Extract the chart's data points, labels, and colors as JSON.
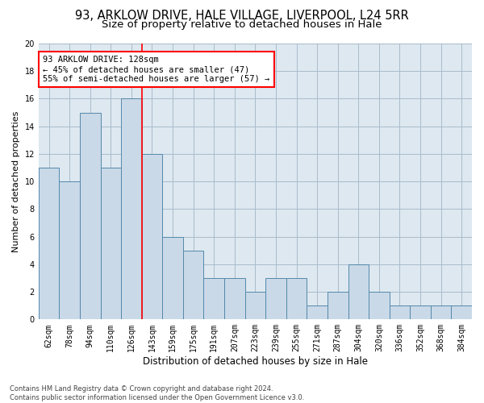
{
  "title": "93, ARKLOW DRIVE, HALE VILLAGE, LIVERPOOL, L24 5RR",
  "subtitle": "Size of property relative to detached houses in Hale",
  "xlabel": "Distribution of detached houses by size in Hale",
  "ylabel": "Number of detached properties",
  "bar_labels": [
    "62sqm",
    "78sqm",
    "94sqm",
    "110sqm",
    "126sqm",
    "143sqm",
    "159sqm",
    "175sqm",
    "191sqm",
    "207sqm",
    "223sqm",
    "239sqm",
    "255sqm",
    "271sqm",
    "287sqm",
    "304sqm",
    "320sqm",
    "336sqm",
    "352sqm",
    "368sqm",
    "384sqm"
  ],
  "bar_values": [
    11,
    10,
    15,
    11,
    16,
    12,
    6,
    5,
    3,
    3,
    2,
    3,
    3,
    1,
    2,
    4,
    2,
    1,
    1,
    1,
    1
  ],
  "bar_color": "#c9d9e8",
  "bar_edge_color": "#5588aa",
  "grid_color": "#aabbcc",
  "background_color": "#dde8f0",
  "annotation_line1": "93 ARKLOW DRIVE: 128sqm",
  "annotation_line2": "← 45% of detached houses are smaller (47)",
  "annotation_line3": "55% of semi-detached houses are larger (57) →",
  "redline_bar_index": 4.5,
  "ylim": [
    0,
    20
  ],
  "yticks": [
    0,
    2,
    4,
    6,
    8,
    10,
    12,
    14,
    16,
    18,
    20
  ],
  "footnote": "Contains HM Land Registry data © Crown copyright and database right 2024.\nContains public sector information licensed under the Open Government Licence v3.0.",
  "title_fontsize": 10.5,
  "subtitle_fontsize": 9.5,
  "axis_label_fontsize": 8,
  "tick_fontsize": 7,
  "annotation_fontsize": 7.5,
  "footnote_fontsize": 6
}
